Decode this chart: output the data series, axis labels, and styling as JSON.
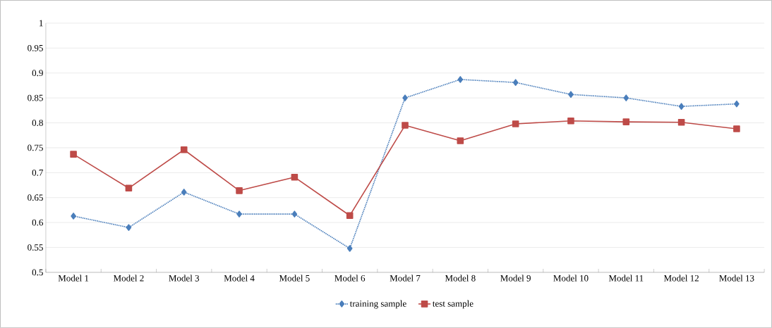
{
  "chart_data": {
    "type": "line",
    "categories": [
      "Model 1",
      "Model 2",
      "Model 3",
      "Model 4",
      "Model 5",
      "Model 6",
      "Model 7",
      "Model 8",
      "Model 9",
      "Model 10",
      "Model 11",
      "Model 12",
      "Model 13"
    ],
    "series": [
      {
        "name": "training sample",
        "color": "#4a7ebb",
        "marker": "diamond",
        "line_style": "dotted",
        "values": [
          0.613,
          0.59,
          0.661,
          0.617,
          0.617,
          0.548,
          0.85,
          0.887,
          0.881,
          0.857,
          0.85,
          0.833,
          0.838
        ]
      },
      {
        "name": "test sample",
        "color": "#be4b48",
        "marker": "square",
        "line_style": "solid",
        "values": [
          0.737,
          0.669,
          0.746,
          0.664,
          0.691,
          0.614,
          0.795,
          0.764,
          0.798,
          0.804,
          0.802,
          0.801,
          0.788
        ]
      }
    ],
    "ylim": [
      0.5,
      1
    ],
    "yticks": [
      0.5,
      0.55,
      0.6,
      0.65,
      0.7,
      0.75,
      0.8,
      0.85,
      0.9,
      0.95,
      1
    ],
    "grid": "y",
    "legend": "bottom"
  }
}
